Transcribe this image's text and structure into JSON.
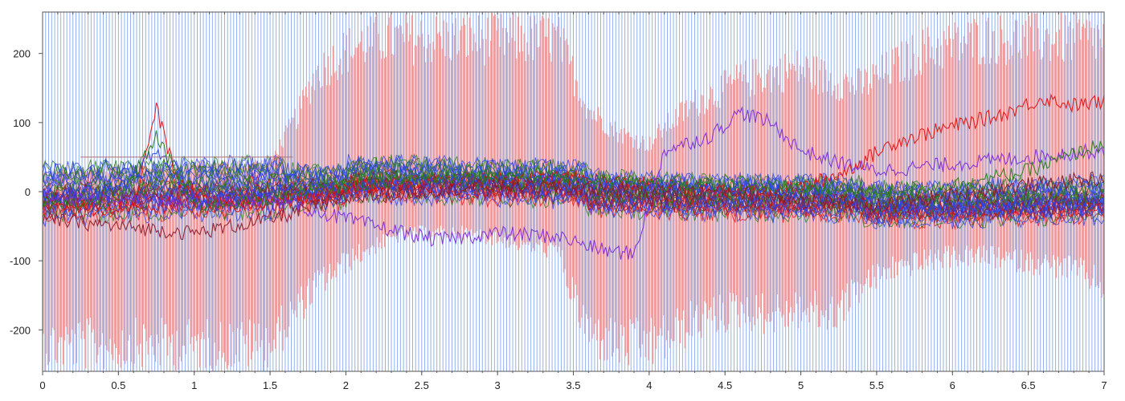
{
  "chart_data": {
    "type": "line",
    "title": "",
    "xlabel": "",
    "ylabel": "",
    "xlim": [
      0,
      7
    ],
    "ylim": [
      -260,
      260
    ],
    "x_ticks": [
      0,
      0.5,
      1,
      1.5,
      2,
      2.5,
      3,
      3.5,
      4,
      4.5,
      5,
      5.5,
      6,
      6.5,
      7
    ],
    "x_tick_labels": [
      "0",
      "0.5",
      "1",
      "1.5",
      "2",
      "2.5",
      "3",
      "3.5",
      "4",
      "4.5",
      "5",
      "5.5",
      "6",
      "6.5",
      "7"
    ],
    "y_ticks": [
      200,
      100,
      0,
      -100,
      -200
    ],
    "y_tick_labels": [
      "200",
      "100",
      "0",
      "-100",
      "-200"
    ],
    "grid": false,
    "legend": "none",
    "reference_line": {
      "y": 50,
      "x_range": [
        0.25,
        1.65
      ],
      "color": "#b07070"
    },
    "colors": {
      "marker_lines": "#7fa4ee",
      "envelope": "#f08a8a",
      "red": "#e01010",
      "blue": "#2a3fe6",
      "green": "#2a7a1a",
      "purple": "#7a2ad8",
      "dark_red": "#8a1a2a"
    },
    "series": [
      {
        "role": "oscillation-envelope",
        "color": "#f08a8a",
        "x": [
          0,
          0.25,
          0.5,
          1.0,
          1.5,
          1.68,
          1.8,
          2.0,
          2.2,
          2.4,
          2.8,
          3.2,
          3.4,
          3.5,
          3.6,
          3.8,
          4.0,
          4.1,
          4.3,
          4.6,
          4.8,
          5.0,
          5.2,
          5.4,
          5.6,
          5.8,
          6.0,
          6.2,
          6.5,
          6.8,
          7.0
        ],
        "upper": [
          30,
          35,
          40,
          45,
          50,
          130,
          200,
          240,
          260,
          260,
          260,
          260,
          260,
          200,
          140,
          100,
          80,
          110,
          150,
          190,
          200,
          210,
          190,
          180,
          210,
          240,
          250,
          260,
          260,
          260,
          260
        ],
        "lower": [
          -260,
          -260,
          -260,
          -260,
          -260,
          -200,
          -160,
          -120,
          -90,
          -70,
          -70,
          -90,
          -100,
          -180,
          -240,
          -260,
          -260,
          -250,
          -220,
          -200,
          -210,
          -200,
          -210,
          -160,
          -130,
          -120,
          -110,
          -110,
          -120,
          -130,
          -160
        ]
      },
      {
        "name": "",
        "color": "#e01010",
        "x": [
          0,
          0.3,
          0.6,
          0.75,
          0.9,
          1.2,
          1.5,
          2.0,
          2.5,
          3.0,
          3.5,
          4.0,
          4.5,
          5.0,
          5.3,
          5.6,
          6.0,
          6.3,
          6.6,
          6.8,
          7.0
        ],
        "y": [
          -10,
          -25,
          -20,
          120,
          10,
          -20,
          -15,
          5,
          15,
          20,
          20,
          10,
          0,
          5,
          30,
          70,
          95,
          110,
          135,
          125,
          130
        ]
      },
      {
        "name": "",
        "color": "#7a2ad8",
        "x": [
          0,
          0.5,
          1.0,
          1.5,
          2.0,
          2.3,
          2.6,
          3.0,
          3.4,
          3.7,
          3.9,
          4.1,
          4.4,
          4.6,
          4.8,
          5.0,
          5.2,
          5.5,
          6.0,
          6.5,
          7.0
        ],
        "y": [
          -5,
          -10,
          -15,
          -10,
          -40,
          -55,
          -70,
          -60,
          -65,
          -85,
          -90,
          60,
          80,
          115,
          100,
          60,
          45,
          30,
          40,
          50,
          60
        ]
      },
      {
        "name": "",
        "color": "#2a3fe6",
        "x": [
          0,
          0.5,
          0.75,
          1.0,
          1.5,
          2.0,
          2.5,
          3.0,
          3.5,
          4.0,
          4.5,
          5.0,
          5.5,
          6.0,
          6.5,
          7.0
        ],
        "y": [
          -5,
          0,
          60,
          -10,
          0,
          5,
          15,
          20,
          15,
          10,
          5,
          0,
          -20,
          -25,
          -20,
          -10
        ]
      },
      {
        "name": "",
        "color": "#2a7a1a",
        "x": [
          0,
          0.5,
          0.75,
          1.0,
          1.5,
          2.0,
          2.5,
          3.0,
          3.5,
          4.0,
          4.5,
          5.0,
          5.5,
          6.0,
          6.5,
          7.0
        ],
        "y": [
          -20,
          -15,
          80,
          -20,
          -10,
          10,
          20,
          25,
          20,
          10,
          10,
          5,
          0,
          10,
          30,
          70
        ]
      },
      {
        "name": "",
        "color": "#8a1a2a",
        "x": [
          0,
          0.5,
          1.0,
          1.5,
          2.0,
          2.5,
          3.0,
          3.5,
          4.0,
          4.5,
          5.0,
          5.5,
          6.0,
          6.5,
          7.0
        ],
        "y": [
          -40,
          -50,
          -60,
          -40,
          -10,
          0,
          10,
          5,
          0,
          0,
          -10,
          -20,
          -5,
          10,
          20
        ]
      }
    ]
  }
}
